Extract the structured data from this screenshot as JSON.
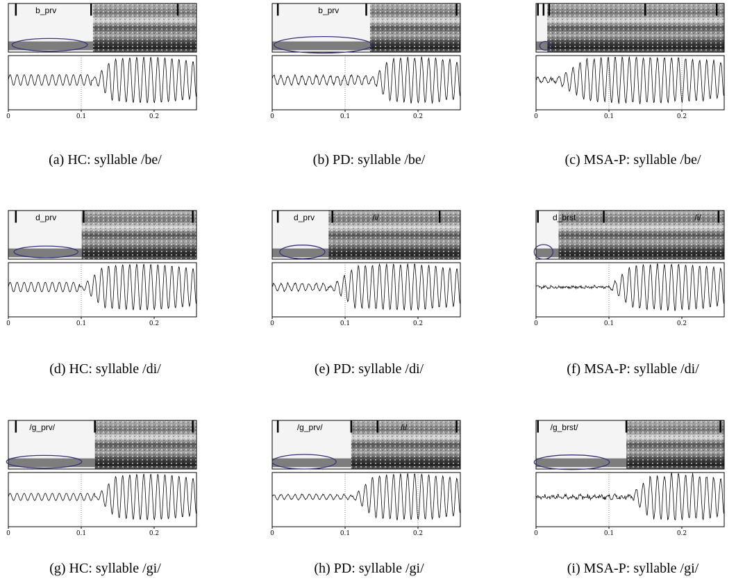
{
  "panels": [
    {
      "segments": [
        "b_prv"
      ],
      "ticks": [
        "0",
        "0.1",
        "0.2"
      ],
      "caption": "(a) HC: syllable /be/"
    },
    {
      "segments": [
        "b_prv"
      ],
      "ticks": [
        "0",
        "0.1",
        "0.2"
      ],
      "caption": "(b) PD: syllable /be/"
    },
    {
      "segments": [],
      "ticks": [
        "0",
        "0.1",
        "0.2"
      ],
      "caption": "(c) MSA-P: syllable /be/"
    },
    {
      "segments": [
        "d_prv"
      ],
      "ticks": [
        "0",
        "0.1",
        "0.2"
      ],
      "caption": "(d) HC: syllable /di/"
    },
    {
      "segments": [
        "d_prv",
        "/i/"
      ],
      "ticks": [
        "0",
        "0.1",
        "0.2"
      ],
      "caption": "(e) PD: syllable /di/"
    },
    {
      "segments": [
        "d_brst",
        "/i/"
      ],
      "ticks": [
        "0",
        "0.1",
        "0.2"
      ],
      "caption": "(f) MSA-P: syllable /di/"
    },
    {
      "segments": [
        "/g_prv/"
      ],
      "ticks": [
        "0",
        "0.1",
        "0.2"
      ],
      "caption": "(g) HC: syllable /gi/"
    },
    {
      "segments": [
        "/g_prv/",
        "/i/"
      ],
      "ticks": [
        "0",
        "0.1",
        "0.2"
      ],
      "caption": "(h) PD: syllable /gi/"
    },
    {
      "segments": [
        "/g_brst/"
      ],
      "ticks": [
        "0",
        "0.1",
        "0.2"
      ],
      "caption": "(i) MSA-P: syllable /gi/"
    }
  ]
}
